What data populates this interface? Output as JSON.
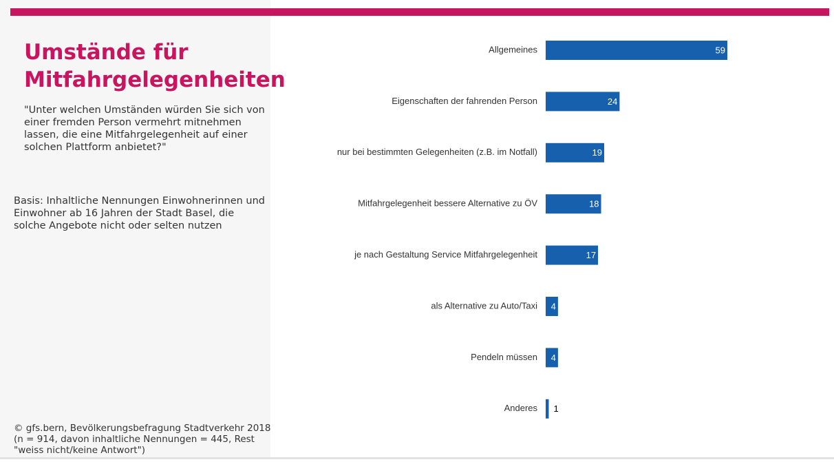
{
  "chart_data": {
    "type": "bar",
    "orientation": "horizontal",
    "title": "Umstände für Mitfahrgelegenheiten",
    "subtitle": "\"Unter welchen Umständen würden Sie sich von einer fremden Person vermehrt mitnehmen lassen, die eine Mitfahrgelegenheit auf einer solchen Plattform anbietet?\"",
    "note": "Basis: Inhaltliche Nennungen Einwohnerinnen und Einwohner ab 16 Jahren der Stadt Basel, die solche Angebote nicht oder selten nutzen",
    "source": "© gfs.bern, Bevölkerungsbefragung Stadtverkehr 2018 (n = 914, davon inhaltliche Nennungen = 445, Rest \"weiss nicht/keine Antwort\")",
    "categories": [
      "Allgemeines",
      "Eigenschaften der fahrenden Person",
      "nur bei bestimmten Gelegenheiten (z.B. im Notfall)",
      "Mitfahrgelegenheit bessere Alternative zu ÖV",
      "je nach Gestaltung Service Mitfahrgelegenheit",
      "als Alternative zu Auto/Taxi",
      "Pendeln müssen",
      "Anderes"
    ],
    "values": [
      59,
      24,
      19,
      18,
      17,
      4,
      4,
      1
    ],
    "color": "#1660ad"
  }
}
